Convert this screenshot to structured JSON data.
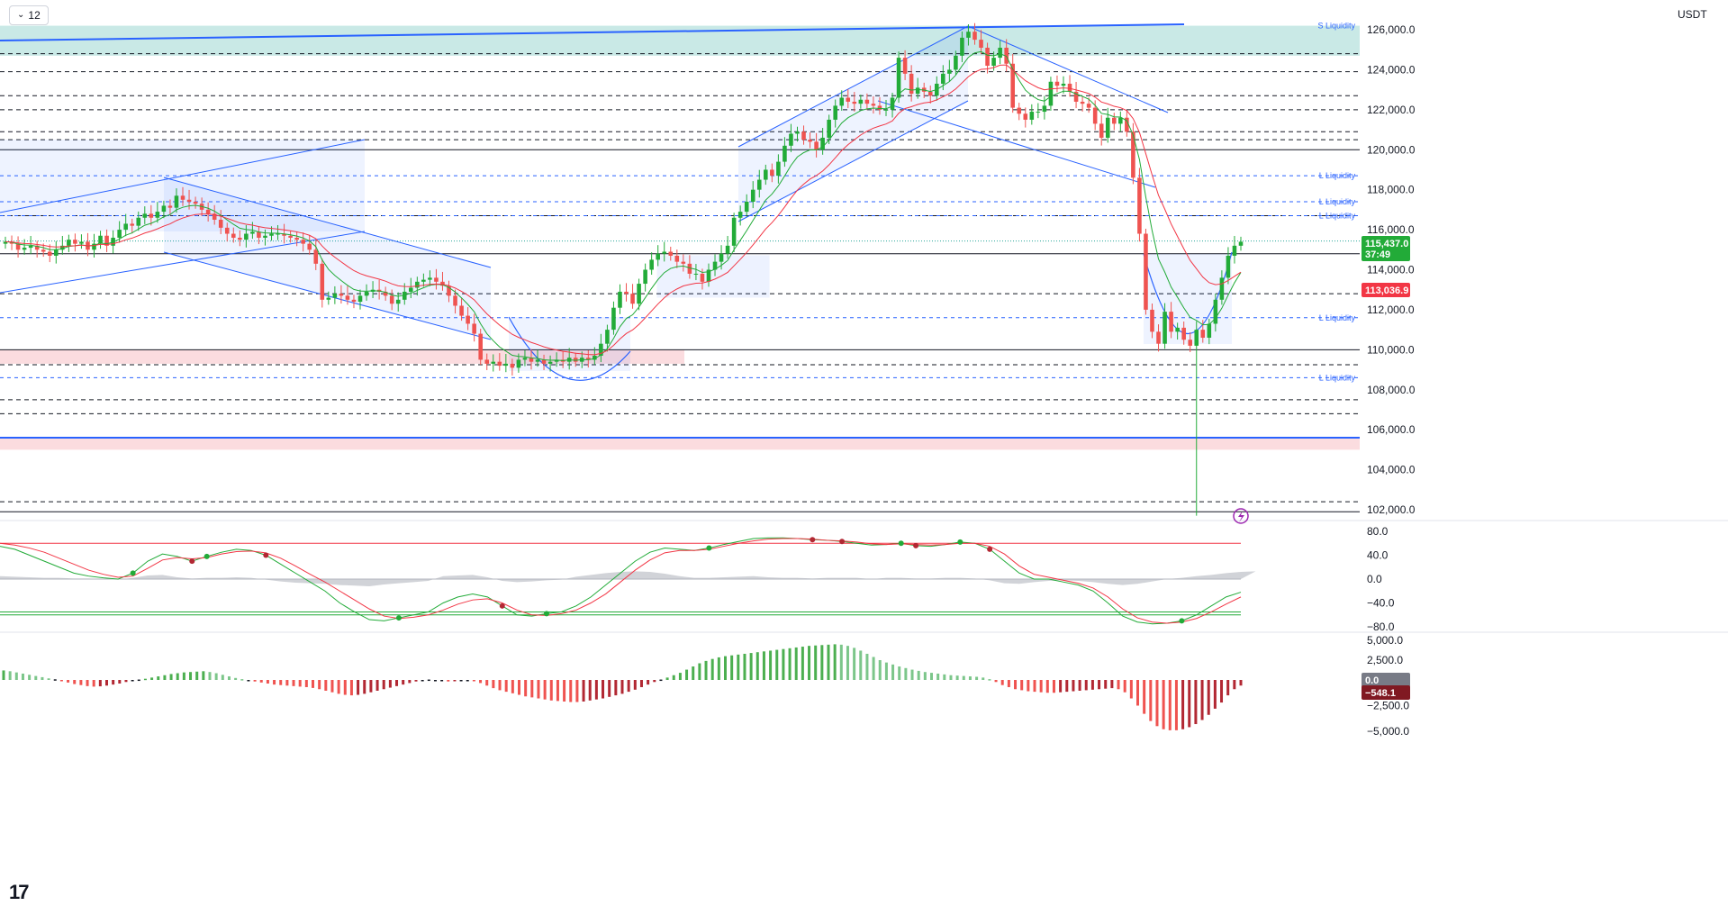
{
  "toolbar": {
    "interval_label": "12",
    "currency_label": "USDT"
  },
  "logo_text": "17",
  "price_tags": {
    "last_price": "115,437.0",
    "countdown": "37:49",
    "ma_value": "113,036.9",
    "hist_zero": "0.0",
    "hist_value": "−548.1"
  },
  "colors": {
    "up": "#26a69a",
    "up_bright": "#22ab38",
    "down": "#ef5350",
    "accent": "#2962ff",
    "ma_green": "#22ab38",
    "ma_red": "#f23645",
    "liquidity_green_zone": "#b2dfdb",
    "liquidity_red_zone": "#f8d7da"
  },
  "chart_data": [
    {
      "type": "candlestick",
      "title": "",
      "ylim": [
        101000,
        127000
      ],
      "y_ticks": [
        "126,000.0",
        "124,000.0",
        "122,000.0",
        "120,000.0",
        "118,000.0",
        "116,000.0",
        "114,000.0",
        "112,000.0",
        "110,000.0",
        "108,000.0",
        "106,000.0",
        "104,000.0",
        "102,000.0"
      ],
      "y_tick_values": [
        126000,
        124000,
        122000,
        120000,
        118000,
        116000,
        114000,
        112000,
        110000,
        108000,
        106000,
        104000,
        102000
      ],
      "horizontal_levels_solid": [
        120000,
        114800,
        110000,
        101900
      ],
      "horizontal_levels_dashed": [
        124800,
        123900,
        122700,
        122000,
        120900,
        120500,
        116700,
        112800,
        109250,
        107500,
        106800,
        102400
      ],
      "liquidity_labels": [
        {
          "text": "S Liquidity",
          "price": 126200
        },
        {
          "text": "L Liquidity",
          "price": 118700
        },
        {
          "text": "L Liquidity",
          "price": 117400
        },
        {
          "text": "L Liquidity",
          "price": 116700
        },
        {
          "text": "L Liquidity",
          "price": 111600
        },
        {
          "text": "L Liquidity",
          "price": 108600
        }
      ],
      "close_series": [
        115400,
        115300,
        115000,
        115100,
        115200,
        115000,
        114900,
        114700,
        115000,
        115200,
        115500,
        115300,
        115400,
        115000,
        115300,
        115700,
        115200,
        115600,
        116000,
        116300,
        116200,
        116600,
        116800,
        116600,
        116900,
        117200,
        117100,
        117700,
        117500,
        117400,
        117300,
        117000,
        116800,
        116500,
        116100,
        115800,
        115600,
        115500,
        115800,
        115900,
        115600,
        115700,
        115800,
        115800,
        115700,
        115600,
        115500,
        115300,
        115000,
        114300,
        112500,
        112600,
        112800,
        112700,
        112500,
        112400,
        112700,
        112900,
        113000,
        112900,
        112700,
        112300,
        112500,
        112900,
        113100,
        113400,
        113500,
        113600,
        113400,
        113200,
        112700,
        112200,
        111700,
        111300,
        110800,
        109500,
        109300,
        109400,
        109200,
        109300,
        109100,
        109500,
        109600,
        109400,
        109500,
        109300,
        109400,
        109500,
        109400,
        109600,
        109400,
        109600,
        109500,
        109700,
        110300,
        111000,
        112100,
        112900,
        112800,
        112300,
        113300,
        114000,
        114500,
        114800,
        114900,
        114700,
        114400,
        114300,
        113800,
        113800,
        113400,
        114000,
        114400,
        114800,
        115200,
        116600,
        116900,
        117400,
        118000,
        118500,
        119000,
        118700,
        119400,
        120200,
        120800,
        120900,
        120500,
        120400,
        120000,
        120600,
        121500,
        122200,
        122600,
        122400,
        122300,
        122500,
        122300,
        122200,
        122000,
        122000,
        122600,
        124600,
        123800,
        122800,
        123100,
        122900,
        122700,
        123300,
        123800,
        124000,
        124700,
        125600,
        125900,
        125500,
        125100,
        124200,
        124600,
        125100,
        124300,
        122100,
        121800,
        121500,
        121900,
        121900,
        122200,
        123400,
        123200,
        123300,
        122900,
        122400,
        122300,
        122100,
        121300,
        120600,
        121600,
        121300,
        121600,
        120900,
        118600,
        115800,
        112000,
        110900,
        110300,
        111900,
        110900,
        111100,
        110500,
        110200,
        111000,
        110600,
        111300,
        112500,
        113600,
        114700,
        115200,
        115400
      ],
      "ma_fast_series_note": "",
      "oscillator": {
        "ylim": [
          -100,
          100
        ],
        "y_ticks": [
          "80.0",
          "40.0",
          "0.0",
          "−40.0",
          "−80.0"
        ],
        "y_tick_values": [
          80,
          40,
          0,
          -40,
          -80
        ],
        "levels": [
          60,
          -55,
          -60
        ],
        "fast_series": [
          55,
          50,
          40,
          30,
          20,
          10,
          5,
          2,
          0,
          10,
          30,
          42,
          38,
          30,
          38,
          45,
          50,
          48,
          40,
          25,
          10,
          -5,
          -20,
          -40,
          -55,
          -68,
          -70,
          -65,
          -60,
          -55,
          -40,
          -30,
          -25,
          -30,
          -45,
          -60,
          -62,
          -58,
          -55,
          -45,
          -30,
          -10,
          10,
          30,
          45,
          52,
          50,
          48,
          52,
          58,
          63,
          68,
          69,
          69,
          68,
          66,
          65,
          63,
          60,
          57,
          58,
          60,
          56,
          55,
          58,
          62,
          60,
          50,
          30,
          10,
          0,
          0,
          -5,
          -10,
          -20,
          -40,
          -62,
          -72,
          -75,
          -74,
          -70,
          -60,
          -45,
          -30,
          -22
        ],
        "slow_series": [
          60,
          57,
          52,
          45,
          35,
          25,
          15,
          8,
          3,
          5,
          18,
          32,
          36,
          34,
          36,
          42,
          46,
          47,
          44,
          35,
          22,
          8,
          -5,
          -20,
          -35,
          -50,
          -62,
          -66,
          -64,
          -60,
          -52,
          -42,
          -35,
          -33,
          -40,
          -52,
          -60,
          -61,
          -58,
          -52,
          -40,
          -25,
          -5,
          15,
          32,
          44,
          48,
          48,
          50,
          55,
          60,
          64,
          67,
          68,
          68,
          67,
          65,
          64,
          62,
          59,
          58,
          59,
          58,
          57,
          58,
          60,
          60,
          55,
          42,
          22,
          8,
          3,
          -2,
          -7,
          -15,
          -30,
          -50,
          -65,
          -72,
          -74,
          -72,
          -66,
          -55,
          -42,
          -30
        ],
        "histogram_series": [
          5,
          4,
          3,
          2,
          2,
          1,
          1,
          0,
          -1,
          2,
          6,
          7,
          3,
          1,
          2,
          2,
          3,
          2,
          -1,
          -4,
          -6,
          -7,
          -8,
          -10,
          -11,
          -12,
          -9,
          -7,
          -5,
          -3,
          5,
          6,
          7,
          3,
          -3,
          -5,
          -4,
          -2,
          -1,
          4,
          7,
          10,
          12,
          13,
          12,
          9,
          5,
          2,
          2,
          3,
          4,
          5,
          3,
          2,
          2,
          1,
          2,
          2,
          2,
          0,
          2,
          2,
          1,
          1,
          2,
          2,
          1,
          -2,
          -7,
          -8,
          -5,
          -3,
          -2,
          -3,
          -5,
          -8,
          -10,
          -8,
          -4,
          0,
          2,
          5,
          7,
          10,
          12,
          13
        ]
      },
      "macd_histogram": {
        "ylim": [
          -5500,
          5500
        ],
        "y_ticks": [
          "5,000.0",
          "2,500.0",
          "0.0",
          "−2,500.0",
          "−5,000.0"
        ],
        "y_tick_values": [
          5000,
          2500,
          0,
          -2500,
          -5000
        ],
        "values": [
          1200,
          1100,
          950,
          800,
          650,
          500,
          350,
          200,
          80,
          -100,
          -250,
          -400,
          -500,
          -600,
          -650,
          -620,
          -550,
          -450,
          -350,
          -200,
          -80,
          50,
          150,
          300,
          450,
          600,
          750,
          850,
          950,
          1000,
          1050,
          1100,
          1000,
          850,
          650,
          450,
          250,
          100,
          -50,
          -150,
          -250,
          -350,
          -450,
          -500,
          -550,
          -600,
          -650,
          -700,
          -780,
          -900,
          -1050,
          -1200,
          -1350,
          -1450,
          -1500,
          -1450,
          -1350,
          -1200,
          -1050,
          -900,
          -750,
          -600,
          -450,
          -300,
          -150,
          -50,
          50,
          0,
          -80,
          -150,
          -100,
          -50,
          0,
          -100,
          -300,
          -550,
          -800,
          -1000,
          -1150,
          -1300,
          -1450,
          -1600,
          -1700,
          -1800,
          -1900,
          -2000,
          -2050,
          -2100,
          -2150,
          -2150,
          -2100,
          -2000,
          -1900,
          -1800,
          -1650,
          -1500,
          -1350,
          -1150,
          -950,
          -700,
          -450,
          -200,
          50,
          300,
          600,
          900,
          1300,
          1700,
          2100,
          2400,
          2650,
          2850,
          3000,
          3100,
          3200,
          3300,
          3400,
          3500,
          3600,
          3700,
          3800,
          3900,
          4000,
          4100,
          4200,
          4300,
          4350,
          4400,
          4450,
          4500,
          4450,
          4300,
          4050,
          3700,
          3300,
          2900,
          2500,
          2200,
          1950,
          1700,
          1500,
          1300,
          1150,
          1000,
          900,
          800,
          700,
          600,
          550,
          500,
          450,
          400,
          300,
          100,
          -200,
          -500,
          -700,
          -900,
          -1000,
          -1100,
          -1150,
          -1200,
          -1250,
          -1250,
          -1200,
          -1150,
          -1100,
          -1050,
          -1000,
          -950,
          -900,
          -850,
          -800,
          -900,
          -1200,
          -1800,
          -2500,
          -3300,
          -4000,
          -4500,
          -4800,
          -4900,
          -4900,
          -4800,
          -4600,
          -4300,
          -3900,
          -3400,
          -2800,
          -2200,
          -1500,
          -900,
          -548
        ]
      }
    }
  ]
}
